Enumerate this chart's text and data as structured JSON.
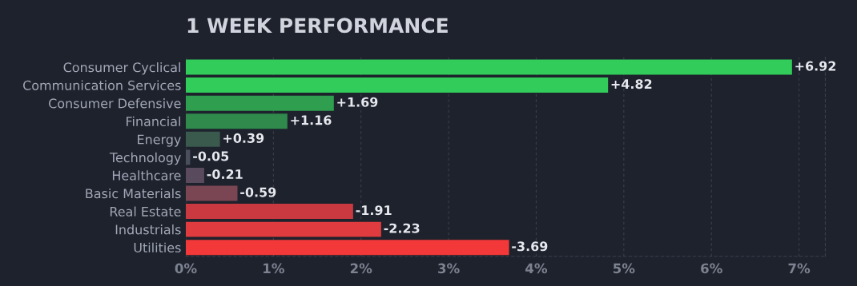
{
  "chart_data": {
    "type": "bar",
    "orientation": "horizontal",
    "title": "1 WEEK PERFORMANCE",
    "categories": [
      "Consumer Cyclical",
      "Communication Services",
      "Consumer Defensive",
      "Financial",
      "Energy",
      "Technology",
      "Healthcare",
      "Basic Materials",
      "Real Estate",
      "Industrials",
      "Utilities"
    ],
    "values": [
      6.92,
      4.82,
      1.69,
      1.16,
      0.39,
      -0.05,
      -0.21,
      -0.59,
      -1.91,
      -2.23,
      -3.69
    ],
    "base": [
      0,
      0,
      0,
      0,
      0,
      0.05,
      0.21,
      0.59,
      1.91,
      2.23,
      3.69
    ],
    "value_labels": [
      "+6.92",
      "+4.82",
      "+1.69",
      "+1.16",
      "+0.39",
      "-0.05",
      "-0.21",
      "-0.59",
      "-1.91",
      "-2.23",
      "-3.69"
    ],
    "colors": [
      "#31cc5a",
      "#31cc5a",
      "#2f9e4f",
      "#2f8a4b",
      "#3a5a4e",
      "#4a4f5e",
      "#5a4a5e",
      "#7a4653",
      "#c9393f",
      "#e03b3e",
      "#f23838"
    ],
    "xlim": [
      0,
      7.3
    ],
    "xticks": [
      {
        "value": 0,
        "label": "0%"
      },
      {
        "value": 1,
        "label": "1%"
      },
      {
        "value": 2,
        "label": "2%"
      },
      {
        "value": 3,
        "label": "3%"
      },
      {
        "value": 4,
        "label": "4%"
      },
      {
        "value": 5,
        "label": "5%"
      },
      {
        "value": 6,
        "label": "6%"
      },
      {
        "value": 7,
        "label": "7%"
      }
    ],
    "grid": "x"
  }
}
